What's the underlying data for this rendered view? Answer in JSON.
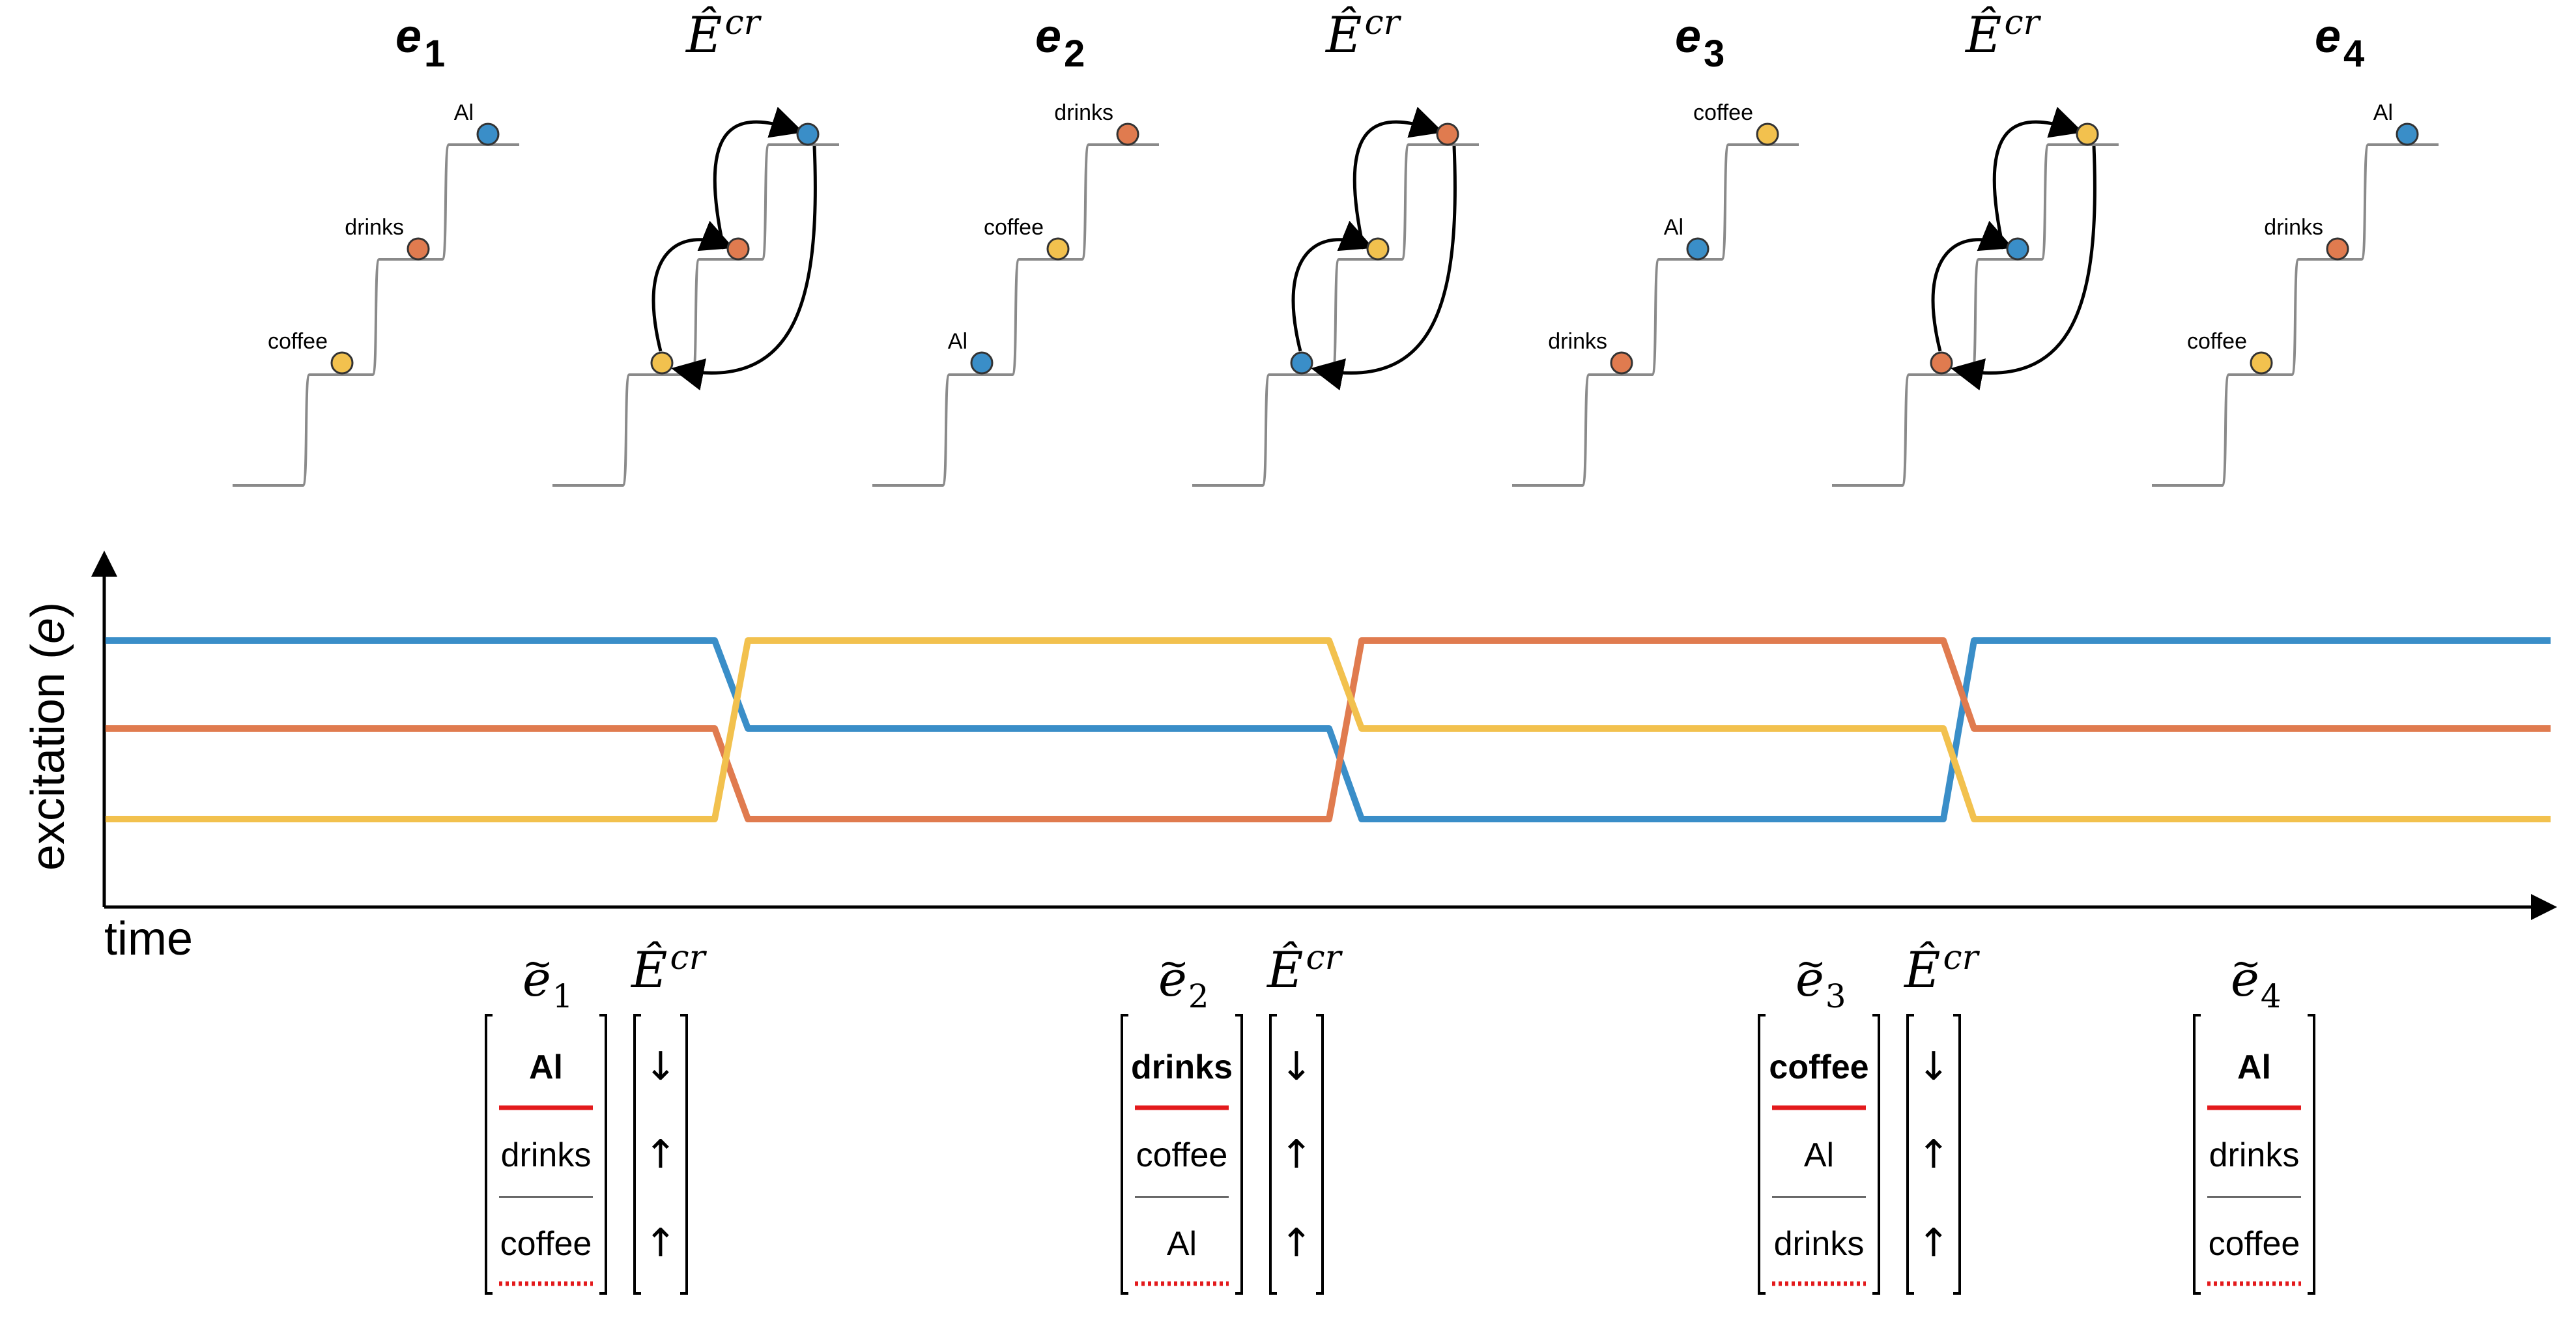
{
  "colors": {
    "Al": "#3a8ec8",
    "drinks": "#e07b4f",
    "coffee": "#f2c14e",
    "staircase": "#8a8a8a",
    "arrow": "#000000",
    "divider_solid": "#e31a1c",
    "divider_dotted": "#e31a1c"
  },
  "panels": [
    {
      "kind": "state",
      "title_letter": "e",
      "title_sub": "1",
      "order": [
        "Al",
        "drinks",
        "coffee"
      ]
    },
    {
      "kind": "transition",
      "title": "Ê",
      "title_sup": "cr",
      "order": [
        "Al",
        "drinks",
        "coffee"
      ]
    },
    {
      "kind": "state",
      "title_letter": "e",
      "title_sub": "2",
      "order": [
        "drinks",
        "coffee",
        "Al"
      ]
    },
    {
      "kind": "transition",
      "title": "Ê",
      "title_sup": "cr",
      "order": [
        "drinks",
        "coffee",
        "Al"
      ]
    },
    {
      "kind": "state",
      "title_letter": "e",
      "title_sub": "3",
      "order": [
        "coffee",
        "Al",
        "drinks"
      ]
    },
    {
      "kind": "transition",
      "title": "Ê",
      "title_sup": "cr",
      "order": [
        "coffee",
        "Al",
        "drinks"
      ]
    },
    {
      "kind": "state",
      "title_letter": "e",
      "title_sub": "4",
      "order": [
        "Al",
        "drinks",
        "coffee"
      ]
    }
  ],
  "plot": {
    "ylabel_text": "excitation (",
    "ylabel_var": "e",
    "ylabel_close": ")",
    "xlabel": "time",
    "series": [
      {
        "name": "Al",
        "levels": [
          3,
          2,
          1,
          3
        ]
      },
      {
        "name": "drinks",
        "levels": [
          2,
          1,
          3,
          2
        ]
      },
      {
        "name": "coffee",
        "levels": [
          1,
          3,
          2,
          1
        ]
      }
    ]
  },
  "vectors": [
    {
      "label_letter": "e",
      "label_sub": "1",
      "items": [
        "Al",
        "drinks",
        "coffee"
      ],
      "has_ecr": true
    },
    {
      "label_letter": "e",
      "label_sub": "2",
      "items": [
        "drinks",
        "coffee",
        "Al"
      ],
      "has_ecr": true
    },
    {
      "label_letter": "e",
      "label_sub": "3",
      "items": [
        "coffee",
        "Al",
        "drinks"
      ],
      "has_ecr": true
    },
    {
      "label_letter": "e",
      "label_sub": "4",
      "items": [
        "Al",
        "drinks",
        "coffee"
      ],
      "has_ecr": false
    }
  ],
  "ecr_label": {
    "base": "Ê",
    "sup": "cr"
  },
  "ecr_arrows": [
    "↓",
    "↑",
    "↑"
  ]
}
